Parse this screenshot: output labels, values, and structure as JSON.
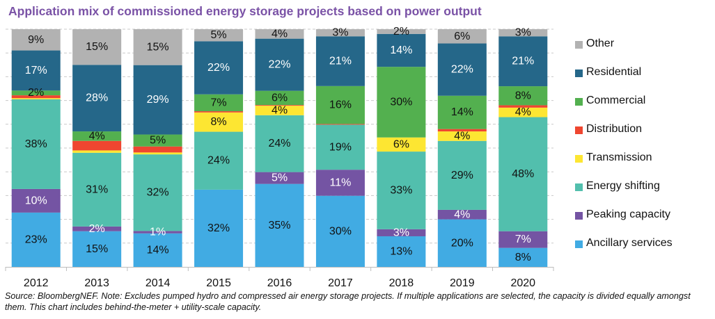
{
  "title": "Application mix of commissioned energy storage projects based on power output",
  "source_note": "Source: BloombergNEF. Note: Excludes pumped hydro and compressed air energy storage projects. If multiple applications are selected, the capacity is divided equally amongst them. This chart includes behind-the-meter + utility-scale capacity.",
  "chart_data": {
    "type": "bar",
    "stacked": true,
    "normalized": true,
    "title": "Application mix of commissioned energy storage projects based on power output",
    "xlabel": "",
    "ylabel": "",
    "ylim": [
      0,
      100
    ],
    "grid": true,
    "legend_position": "right",
    "categories": [
      "2012",
      "2013",
      "2014",
      "2015",
      "2016",
      "2017",
      "2018",
      "2019",
      "2020"
    ],
    "series": [
      {
        "name": "Ancillary services",
        "color": "#41abe3",
        "label_color": "#111111",
        "values": [
          23,
          15,
          14,
          32,
          35,
          30,
          13,
          20,
          8
        ],
        "labels": [
          "23%",
          "15%",
          "14%",
          "32%",
          "35%",
          "30%",
          "13%",
          "20%",
          "8%"
        ]
      },
      {
        "name": "Peaking capacity",
        "color": "#7454a3",
        "label_color": "#ffffff",
        "values": [
          10,
          2,
          1,
          0,
          5,
          11,
          3,
          4,
          7
        ],
        "labels": [
          "10%",
          "2%",
          "1%",
          "",
          "5%",
          "11%",
          "3%",
          "4%",
          "7%"
        ]
      },
      {
        "name": "Energy shifting",
        "color": "#52bfad",
        "label_color": "#111111",
        "values": [
          38,
          31,
          32,
          24,
          24,
          19,
          33,
          29,
          48
        ],
        "labels": [
          "38%",
          "31%",
          "32%",
          "24%",
          "24%",
          "19%",
          "33%",
          "29%",
          "48%"
        ]
      },
      {
        "name": "Transmission",
        "color": "#fde632",
        "label_color": "#111111",
        "values": [
          0.5,
          1,
          0.8,
          8,
          4,
          0,
          6,
          4,
          4
        ],
        "labels": [
          "",
          "",
          "",
          "8%",
          "4%",
          "",
          "6%",
          "4%",
          "4%"
        ]
      },
      {
        "name": "Distribution",
        "color": "#ef4630",
        "label_color": "#111111",
        "values": [
          1.2,
          4,
          2.5,
          0.5,
          0.3,
          0.3,
          0,
          1,
          1
        ],
        "labels": [
          "",
          "",
          "",
          "",
          "",
          "",
          "",
          "",
          ""
        ]
      },
      {
        "name": "Commercial",
        "color": "#53b04f",
        "label_color": "#111111",
        "values": [
          2,
          4,
          5,
          7,
          6,
          16,
          30,
          14,
          8
        ],
        "labels": [
          "2%",
          "4%",
          "5%",
          "7%",
          "6%",
          "16%",
          "30%",
          "14%",
          "8%"
        ]
      },
      {
        "name": "Residential",
        "color": "#256789",
        "label_color": "#ffffff",
        "values": [
          17,
          28,
          29,
          22,
          22,
          21,
          14,
          22,
          21
        ],
        "labels": [
          "17%",
          "28%",
          "29%",
          "22%",
          "22%",
          "21%",
          "14%",
          "22%",
          "21%"
        ]
      },
      {
        "name": "Other",
        "color": "#b2b2b2",
        "label_color": "#111111",
        "values": [
          9,
          15,
          15,
          5,
          4,
          3,
          2,
          6,
          3
        ],
        "labels": [
          "9%",
          "15%",
          "15%",
          "5%",
          "4%",
          "3%",
          "2%",
          "6%",
          "3%"
        ]
      }
    ],
    "legend_order": [
      "Other",
      "Residential",
      "Commercial",
      "Distribution",
      "Transmission",
      "Energy shifting",
      "Peaking capacity",
      "Ancillary services"
    ]
  }
}
